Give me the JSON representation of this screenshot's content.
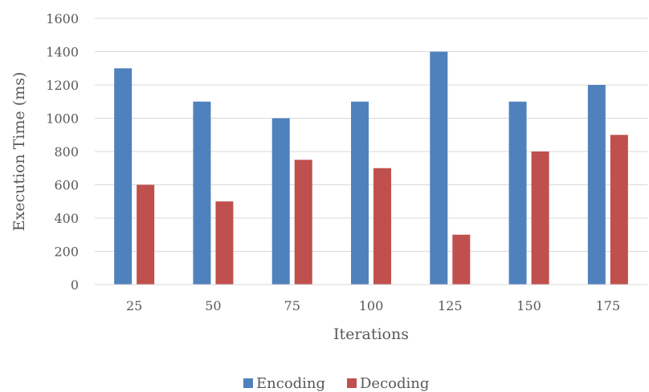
{
  "chart_data": {
    "type": "bar",
    "categories": [
      "25",
      "50",
      "75",
      "100",
      "125",
      "150",
      "175"
    ],
    "series": [
      {
        "name": "Encoding",
        "color": "#4f81bd",
        "values": [
          1300,
          1100,
          1000,
          1100,
          1400,
          1100,
          1200
        ]
      },
      {
        "name": "Decoding",
        "color": "#c0504d",
        "values": [
          600,
          500,
          750,
          700,
          300,
          800,
          900
        ]
      }
    ],
    "xlabel": "Iterations",
    "ylabel": "Execution Time (ms)",
    "ylim": [
      0,
      1600
    ],
    "yticks": [
      "0",
      "200",
      "400",
      "600",
      "800",
      "1000",
      "1200",
      "1400",
      "1600"
    ],
    "grid": true,
    "legend_position": "bottom"
  }
}
